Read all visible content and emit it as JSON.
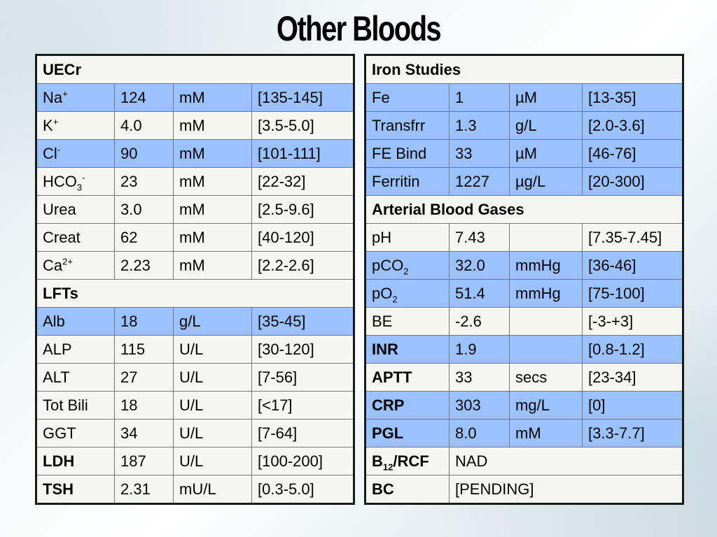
{
  "title": "Other Bloods",
  "left_table": {
    "header": "UECr",
    "rows": [
      {
        "name": "Na",
        "sup": "+",
        "value": "124",
        "unit": "mM",
        "range": "[135-145]"
      },
      {
        "name": "K",
        "sup": "+",
        "value": "4.0",
        "unit": "mM",
        "range": "[3.5-5.0]"
      },
      {
        "name": "Cl",
        "sup": "-",
        "value": "90",
        "unit": "mM",
        "range": "[101-111]"
      },
      {
        "name": "HCO",
        "sub": "3",
        "sup": "-",
        "value": "23",
        "unit": "mM",
        "range": "[22-32]"
      },
      {
        "name": "Urea",
        "value": "3.0",
        "unit": "mM",
        "range": "[2.5-9.6]"
      },
      {
        "name": "Creat",
        "value": "62",
        "unit": "mM",
        "range": "[40-120]"
      },
      {
        "name": "Ca",
        "sup": "2+",
        "value": "2.23",
        "unit": "mM",
        "range": "[2.2-2.6]"
      }
    ],
    "lft_header": "LFTs",
    "lft_rows": [
      {
        "name": "Alb",
        "value": "18",
        "unit": "g/L",
        "range": "[35-45]"
      },
      {
        "name": "ALP",
        "value": "115",
        "unit": "U/L",
        "range": "[30-120]"
      },
      {
        "name": "ALT",
        "value": "27",
        "unit": "U/L",
        "range": "[7-56]"
      },
      {
        "name": "Tot Bili",
        "value": "18",
        "unit": "U/L",
        "range": "[<17]"
      },
      {
        "name": "GGT",
        "value": "34",
        "unit": "U/L",
        "range": "[7-64]"
      },
      {
        "name": "LDH",
        "value": "187",
        "unit": "U/L",
        "range": "[100-200]"
      },
      {
        "name": "TSH",
        "value": "2.31",
        "unit": "mU/L",
        "range": "[0.3-5.0]"
      }
    ]
  },
  "right_table": {
    "iron_header": "Iron Studies",
    "iron_rows": [
      {
        "name": "Fe",
        "value": "1",
        "unit": "µM",
        "range": "[13-35]"
      },
      {
        "name": "Transfrr",
        "value": "1.3",
        "unit": "g/L",
        "range": "[2.0-3.6]"
      },
      {
        "name": "FE Bind",
        "value": "33",
        "unit": "µM",
        "range": "[46-76]"
      },
      {
        "name": "Ferritin",
        "value": "1227",
        "unit": "µg/L",
        "range": "[20-300]"
      }
    ],
    "abg_header": "Arterial Blood Gases",
    "abg_rows": [
      {
        "name": "pH",
        "value": "7.43",
        "unit": "",
        "range": "[7.35-7.45]"
      },
      {
        "name": "pCO",
        "sub": "2",
        "value": "32.0",
        "unit": "mmHg",
        "range": "[36-46]"
      },
      {
        "name": "pO",
        "sub": "2",
        "value": "51.4",
        "unit": "mmHg",
        "range": "[75-100]"
      },
      {
        "name": "BE",
        "value": "-2.6",
        "unit": "",
        "range": "[-3-+3]"
      }
    ],
    "other_rows": [
      {
        "name": "INR",
        "value": "1.9",
        "unit": "",
        "range": "[0.8-1.2]"
      },
      {
        "name": "APTT",
        "value": "33",
        "unit": "secs",
        "range": "[23-34]"
      },
      {
        "name": "CRP",
        "value": "303",
        "unit": "mg/L",
        "range": "[0]"
      },
      {
        "name": "PGL",
        "value": "8.0",
        "unit": "mM",
        "range": "[3.3-7.7]"
      }
    ],
    "b12": {
      "name": "B",
      "sub": "12",
      "suffix": "/RCF",
      "value": "NAD"
    },
    "bc": {
      "name": "BC",
      "value": "[PENDING]"
    }
  }
}
